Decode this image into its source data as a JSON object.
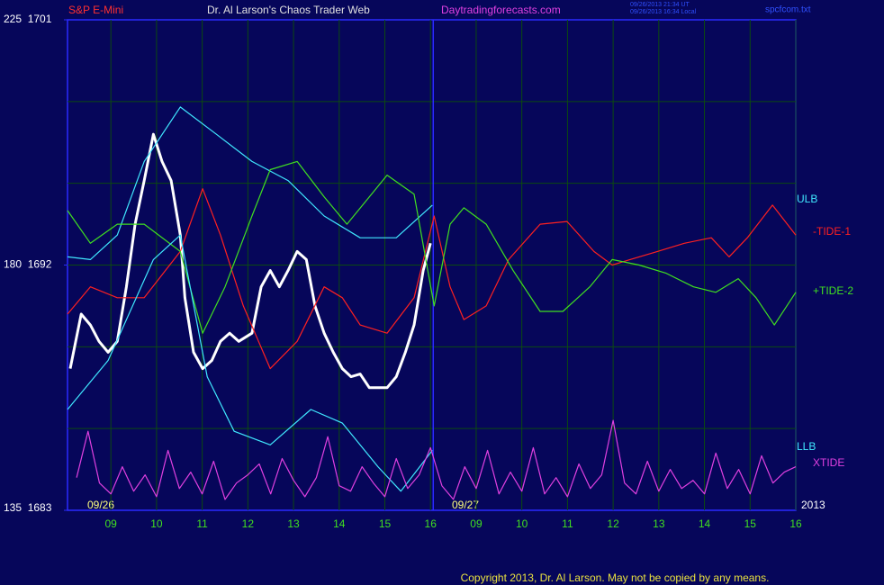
{
  "chart_data": {
    "type": "line",
    "title": "Dr. Al Larson's Chaos Trader Web",
    "site": "Daytradingforecasts.com",
    "stamp_ut": "09/26/2013 21:34 UT",
    "stamp_local": "09/26/2013 16:34 Local",
    "file": "spcfcom.txt",
    "copyright": "Copyright 2013, Dr. Al Larson. May not be copied by any means.",
    "annotations": [
      "09/26",
      "09/27",
      "2013"
    ],
    "xlim": [
      -0.95,
      15.0
    ],
    "ylim": [
      1683,
      1701
    ],
    "xticks": [
      {
        "value": 0,
        "label": "09"
      },
      {
        "value": 1,
        "label": "10"
      },
      {
        "value": 2,
        "label": "11"
      },
      {
        "value": 3,
        "label": "12"
      },
      {
        "value": 4,
        "label": "13"
      },
      {
        "value": 5,
        "label": "14"
      },
      {
        "value": 6,
        "label": "15"
      },
      {
        "value": 7,
        "label": "16"
      },
      {
        "value": 8,
        "label": "09"
      },
      {
        "value": 9,
        "label": "10"
      },
      {
        "value": 10,
        "label": "11"
      },
      {
        "value": 11,
        "label": "12"
      },
      {
        "value": 12,
        "label": "13"
      },
      {
        "value": 13,
        "label": "14"
      },
      {
        "value": 14,
        "label": "15"
      },
      {
        "value": 15,
        "label": "16"
      }
    ],
    "yticks": [
      {
        "value": 1701,
        "label": "225  1701"
      },
      {
        "value": 1692,
        "label": "180  1692"
      },
      {
        "value": 1683,
        "label": "135  1683"
      }
    ],
    "ygrid": [
      1686,
      1689,
      1692,
      1695,
      1698
    ],
    "grid": true,
    "day_break": 7.06,
    "series": [
      {
        "name": "S&P E-Mini",
        "color": "#ffffff",
        "x": [
          -0.89,
          -0.65,
          -0.45,
          -0.26,
          -0.06,
          0.14,
          0.34,
          0.53,
          0.73,
          0.93,
          1.12,
          1.32,
          1.52,
          1.62,
          1.81,
          2.01,
          2.21,
          2.4,
          2.6,
          2.8,
          3.09,
          3.29,
          3.49,
          3.69,
          3.88,
          4.08,
          4.28,
          4.47,
          4.67,
          4.87,
          5.07,
          5.26,
          5.46,
          5.66,
          5.85,
          6.05,
          6.25,
          6.45,
          6.64,
          6.84,
          7.0
        ],
        "values": [
          1688.2,
          1690.2,
          1689.8,
          1689.2,
          1688.8,
          1689.2,
          1691.2,
          1693.5,
          1695.1,
          1696.8,
          1695.8,
          1695.1,
          1693.1,
          1690.8,
          1688.8,
          1688.2,
          1688.5,
          1689.2,
          1689.5,
          1689.2,
          1689.5,
          1691.2,
          1691.8,
          1691.2,
          1691.8,
          1692.5,
          1692.2,
          1690.5,
          1689.5,
          1688.8,
          1688.2,
          1687.9,
          1688.0,
          1687.5,
          1687.5,
          1687.5,
          1687.9,
          1688.8,
          1689.8,
          1691.8,
          1692.8
        ]
      },
      {
        "name": "ULB",
        "color": "#40e8ff",
        "x": [
          -0.95,
          -0.45,
          0.14,
          0.73,
          1.52,
          2.31,
          3.09,
          3.88,
          4.67,
          5.46,
          6.25,
          7.04
        ],
        "values": [
          1692.3,
          1692.2,
          1693.1,
          1695.8,
          1697.8,
          1696.8,
          1695.8,
          1695.1,
          1693.8,
          1693.0,
          1693.0,
          1694.2
        ]
      },
      {
        "name": "-TIDE-1",
        "color": "#ff2020",
        "x": [
          -0.95,
          -0.45,
          0.14,
          0.73,
          1.52,
          2.01,
          2.4,
          2.9,
          3.49,
          4.08,
          4.67,
          5.07,
          5.46,
          6.05,
          6.64,
          7.08,
          7.43,
          7.73,
          8.22,
          8.71,
          9.4,
          9.99,
          10.58,
          10.98,
          11.37,
          11.97,
          12.56,
          13.15,
          13.54,
          13.94,
          14.49,
          15.0
        ],
        "values": [
          1690.2,
          1691.2,
          1690.8,
          1690.8,
          1692.5,
          1694.8,
          1693.1,
          1690.5,
          1688.2,
          1689.2,
          1691.2,
          1690.8,
          1689.8,
          1689.5,
          1690.8,
          1693.8,
          1691.2,
          1690.0,
          1690.5,
          1692.2,
          1693.5,
          1693.6,
          1692.5,
          1692.0,
          1692.2,
          1692.5,
          1692.8,
          1693.0,
          1692.3,
          1693.0,
          1694.2,
          1693.1
        ]
      },
      {
        "name": "+TIDE-2",
        "color": "#40e020",
        "x": [
          -0.95,
          -0.45,
          0.14,
          0.73,
          1.52,
          2.01,
          2.5,
          3.09,
          3.49,
          4.08,
          4.67,
          5.17,
          5.66,
          6.05,
          6.64,
          7.08,
          7.43,
          7.73,
          8.22,
          8.81,
          9.4,
          9.9,
          10.49,
          10.98,
          11.57,
          12.16,
          12.76,
          13.25,
          13.74,
          14.13,
          14.53,
          15.0
        ],
        "values": [
          1694.0,
          1692.8,
          1693.5,
          1693.5,
          1692.5,
          1689.5,
          1691.2,
          1693.8,
          1695.5,
          1695.8,
          1694.5,
          1693.5,
          1694.5,
          1695.3,
          1694.6,
          1690.5,
          1693.5,
          1694.1,
          1693.5,
          1691.8,
          1690.3,
          1690.3,
          1691.2,
          1692.2,
          1692.0,
          1691.7,
          1691.2,
          1691.0,
          1691.5,
          1690.8,
          1689.8,
          1691.0
        ]
      },
      {
        "name": "LLB",
        "color": "#40e8ff",
        "x": [
          -0.95,
          -0.06,
          0.93,
          1.52,
          2.11,
          2.7,
          3.49,
          4.38,
          5.07,
          5.85,
          6.35,
          7.04
        ],
        "values": [
          1686.7,
          1688.5,
          1692.2,
          1693.1,
          1687.9,
          1685.9,
          1685.4,
          1686.7,
          1686.2,
          1684.6,
          1683.7,
          1685.2
        ]
      },
      {
        "name": "XTIDE",
        "color": "#e040e0",
        "x": [
          -0.75,
          -0.5,
          -0.25,
          0,
          0.25,
          0.5,
          0.75,
          1,
          1.25,
          1.5,
          1.75,
          2,
          2.25,
          2.5,
          2.75,
          3,
          3.25,
          3.5,
          3.75,
          4,
          4.25,
          4.5,
          4.75,
          5,
          5.25,
          5.5,
          5.75,
          6,
          6.25,
          6.5,
          6.75,
          7,
          7.25,
          7.5,
          7.75,
          8,
          8.25,
          8.5,
          8.75,
          9,
          9.25,
          9.5,
          9.75,
          10,
          10.25,
          10.5,
          10.75,
          11,
          11.25,
          11.5,
          11.75,
          12,
          12.25,
          12.5,
          12.75,
          13,
          13.25,
          13.5,
          13.75,
          14,
          14.25,
          14.5,
          14.75,
          15
        ],
        "values": [
          1684.2,
          1685.9,
          1684.0,
          1683.6,
          1684.6,
          1683.7,
          1684.3,
          1683.5,
          1685.2,
          1683.8,
          1684.4,
          1683.6,
          1684.8,
          1683.4,
          1684.0,
          1684.3,
          1684.7,
          1683.6,
          1684.9,
          1684.1,
          1683.5,
          1684.2,
          1685.7,
          1683.9,
          1683.7,
          1684.6,
          1684.0,
          1683.5,
          1684.9,
          1683.8,
          1684.3,
          1685.3,
          1683.9,
          1683.4,
          1684.6,
          1683.8,
          1685.2,
          1683.6,
          1684.4,
          1683.7,
          1685.3,
          1683.6,
          1684.2,
          1683.5,
          1684.7,
          1683.8,
          1684.3,
          1686.3,
          1684.0,
          1683.6,
          1684.8,
          1683.7,
          1684.5,
          1683.8,
          1684.1,
          1683.6,
          1685.1,
          1683.8,
          1684.5,
          1683.6,
          1685.0,
          1684.0,
          1684.4,
          1684.6
        ]
      }
    ]
  }
}
